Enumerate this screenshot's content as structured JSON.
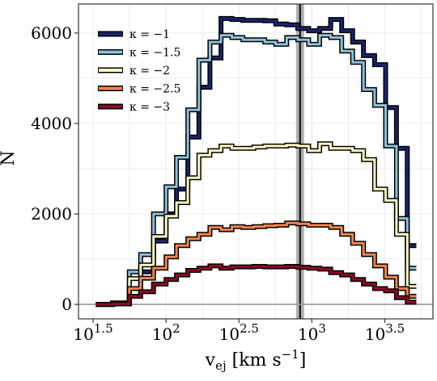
{
  "chart_data": {
    "type": "line",
    "xscale": "log",
    "xlim": [
      25.1,
      6760
    ],
    "ylim": [
      -320,
      6640
    ],
    "grid": true,
    "legend_position": "top-left",
    "xlabel": {
      "base": "v",
      "sub": "ej",
      "rest": " [km s",
      "sup": "−1",
      "close": "]"
    },
    "ylabel": "N",
    "xticks": [
      {
        "value": 31.62,
        "base": "10",
        "exp": "1.5"
      },
      {
        "value": 100,
        "base": "10",
        "exp": "2"
      },
      {
        "value": 316.2,
        "base": "10",
        "exp": "2.5"
      },
      {
        "value": 1000,
        "base": "10",
        "exp": "3"
      },
      {
        "value": 3162,
        "base": "10",
        "exp": "3.5"
      }
    ],
    "yticks": [
      {
        "value": 0,
        "label": "0"
      },
      {
        "value": 2000,
        "label": "2000"
      },
      {
        "value": 4000,
        "label": "4000"
      },
      {
        "value": 6000,
        "label": "6000"
      }
    ],
    "hline": {
      "y": 0,
      "color": "#999999"
    },
    "vline": {
      "x": 830,
      "color": "#222222"
    },
    "bin_edges": [
      33,
      43,
      56,
      67,
      82,
      100,
      118,
      141,
      168,
      200,
      238,
      283,
      336,
      400,
      475,
      565,
      672,
      800,
      950,
      1130,
      1345,
      1600,
      1900,
      2260,
      2690,
      3200,
      3800,
      4510,
      5200
    ],
    "series": [
      {
        "name": "κ = −1",
        "color": "#1c2470",
        "values": [
          0,
          30,
          350,
          720,
          1400,
          2000,
          2550,
          3700,
          4800,
          5450,
          6320,
          6300,
          6280,
          6280,
          6270,
          6200,
          6180,
          6100,
          6050,
          6100,
          6300,
          6050,
          5800,
          5500,
          5300,
          4350,
          3450,
          1300
        ]
      },
      {
        "name": "κ = −1.5",
        "color": "#8dc1d9",
        "values": [
          0,
          30,
          720,
          1100,
          2000,
          2600,
          3250,
          4300,
          5400,
          5800,
          5950,
          5900,
          5850,
          5850,
          5800,
          5750,
          5900,
          5850,
          5750,
          5950,
          5900,
          5600,
          5350,
          4750,
          4400,
          3500,
          1900,
          800
        ]
      },
      {
        "name": "κ = −2",
        "color": "#fbfbc2",
        "values": [
          0,
          30,
          570,
          870,
          1500,
          1950,
          2250,
          2800,
          3300,
          3400,
          3500,
          3450,
          3450,
          3480,
          3500,
          3500,
          3520,
          3500,
          3400,
          3550,
          3450,
          3450,
          3400,
          3200,
          2550,
          2300,
          1550,
          400
        ]
      },
      {
        "name": "κ = −2.5",
        "color": "#f0834e",
        "values": [
          0,
          25,
          350,
          580,
          800,
          1050,
          1300,
          1450,
          1550,
          1700,
          1650,
          1720,
          1700,
          1720,
          1740,
          1750,
          1800,
          1780,
          1750,
          1750,
          1700,
          1550,
          1350,
          1100,
          850,
          600,
          350,
          180
        ]
      },
      {
        "name": "κ = −3",
        "color": "#8a0a24",
        "values": [
          0,
          10,
          180,
          280,
          450,
          550,
          650,
          750,
          800,
          850,
          800,
          830,
          830,
          840,
          830,
          830,
          840,
          820,
          800,
          780,
          700,
          650,
          550,
          450,
          350,
          300,
          150,
          50
        ]
      }
    ]
  }
}
